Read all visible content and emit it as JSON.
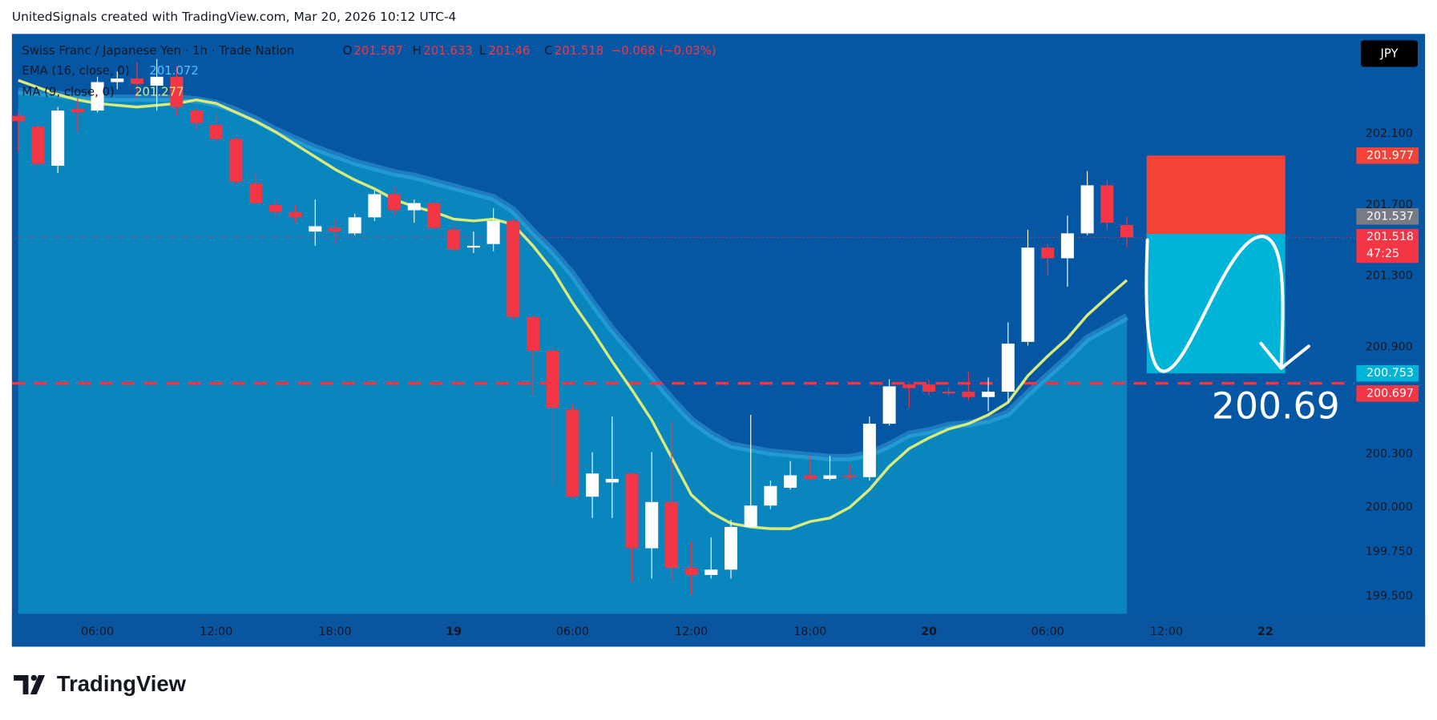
{
  "caption": "UnitedSignals created with TradingView.com, Mar 20, 2026 10:12 UTC-4",
  "currency": "JPY",
  "brand": "TradingView",
  "chart_data": {
    "type": "candlestick",
    "title": "Swiss Franc / Japanese Yen · 1h · Trade Nation",
    "ohlc_labels": [
      "O",
      "H",
      "L",
      "C"
    ],
    "change": "−0.068 (−0.03%)",
    "open": [
      202.2,
      202.14,
      201.92,
      202.24,
      202.23,
      202.39,
      202.41,
      202.37,
      202.42,
      202.23,
      202.15,
      202.07,
      201.82,
      201.7,
      201.66,
      201.55,
      201.57,
      201.54,
      201.63,
      201.76,
      201.67,
      201.71,
      201.56,
      201.46,
      201.48,
      201.61,
      201.07,
      200.88,
      200.55,
      200.06,
      200.14,
      200.19,
      199.77,
      200.03,
      199.66,
      199.62,
      199.65,
      199.89,
      200.01,
      200.11,
      200.18,
      200.16,
      200.18,
      200.17,
      200.47,
      200.69,
      200.69,
      200.65,
      200.65,
      200.62,
      200.65,
      200.93,
      201.46,
      201.4,
      201.54,
      201.81,
      201.587
    ],
    "high": [
      202.22,
      202.16,
      202.25,
      202.3,
      202.42,
      202.45,
      202.5,
      202.52,
      202.48,
      202.25,
      202.22,
      202.08,
      201.88,
      201.73,
      201.7,
      201.73,
      201.62,
      201.65,
      201.78,
      201.8,
      201.73,
      201.73,
      201.58,
      201.55,
      201.68,
      201.62,
      201.08,
      200.9,
      200.58,
      200.31,
      200.51,
      200.19,
      200.31,
      200.48,
      199.81,
      199.83,
      199.93,
      200.52,
      200.15,
      200.26,
      200.29,
      200.29,
      200.24,
      200.51,
      200.72,
      200.7,
      200.72,
      200.67,
      200.76,
      200.73,
      201.04,
      201.56,
      201.48,
      201.64,
      201.89,
      201.84,
      201.633
    ],
    "low": [
      202.0,
      201.9,
      201.88,
      202.11,
      202.22,
      202.35,
      202.3,
      202.23,
      202.2,
      202.12,
      202.05,
      201.82,
      201.7,
      201.63,
      201.6,
      201.47,
      201.48,
      201.53,
      201.61,
      201.64,
      201.6,
      201.55,
      201.44,
      201.43,
      201.44,
      201.05,
      200.63,
      200.12,
      200.05,
      199.94,
      199.94,
      199.58,
      199.6,
      199.58,
      199.51,
      199.6,
      199.6,
      199.89,
      199.99,
      200.1,
      200.15,
      200.15,
      200.15,
      200.15,
      200.46,
      200.56,
      200.63,
      200.63,
      200.6,
      200.54,
      200.59,
      200.91,
      201.3,
      201.24,
      201.53,
      201.56,
      201.46
    ],
    "close": [
      202.17,
      201.93,
      202.23,
      202.22,
      202.39,
      202.41,
      202.38,
      202.42,
      202.25,
      202.16,
      202.07,
      201.83,
      201.71,
      201.66,
      201.63,
      201.58,
      201.55,
      201.63,
      201.76,
      201.67,
      201.71,
      201.57,
      201.45,
      201.47,
      201.61,
      201.07,
      200.88,
      200.56,
      200.06,
      200.19,
      200.16,
      199.77,
      200.03,
      199.66,
      199.62,
      199.65,
      199.89,
      200.01,
      200.12,
      200.18,
      200.16,
      200.18,
      200.17,
      200.47,
      200.68,
      200.67,
      200.65,
      200.64,
      200.62,
      200.65,
      200.92,
      201.46,
      201.4,
      201.54,
      201.81,
      201.6,
      201.518
    ],
    "up_color": "#ffffff",
    "down_color": "#f23645",
    "series": [
      {
        "name": "EMA (16, close, 0)",
        "color": "#4fc3f7",
        "fill": "#0a86bf",
        "values": [
          202.34,
          202.33,
          202.32,
          202.31,
          202.3,
          202.3,
          202.3,
          202.3,
          202.3,
          202.29,
          202.27,
          202.23,
          202.18,
          202.12,
          202.07,
          202.02,
          201.98,
          201.94,
          201.91,
          201.88,
          201.86,
          201.83,
          201.8,
          201.77,
          201.74,
          201.67,
          201.55,
          201.44,
          201.31,
          201.15,
          201.0,
          200.87,
          200.74,
          200.61,
          200.49,
          200.41,
          200.35,
          200.33,
          200.31,
          200.3,
          200.29,
          200.28,
          200.28,
          200.3,
          200.35,
          200.41,
          200.43,
          200.46,
          200.47,
          200.49,
          200.53,
          200.64,
          200.74,
          200.84,
          200.95,
          201.01,
          201.072
        ]
      },
      {
        "name": "MA (9, close, 0)",
        "color": "#d9ec7a",
        "values": [
          202.4,
          202.36,
          202.32,
          202.29,
          202.27,
          202.26,
          202.25,
          202.26,
          202.27,
          202.29,
          202.27,
          202.22,
          202.17,
          202.11,
          202.04,
          201.97,
          201.9,
          201.84,
          201.79,
          201.73,
          201.69,
          201.66,
          201.62,
          201.61,
          201.62,
          201.59,
          201.47,
          201.33,
          201.15,
          200.99,
          200.82,
          200.66,
          200.49,
          200.28,
          200.07,
          199.97,
          199.91,
          199.89,
          199.88,
          199.88,
          199.92,
          199.94,
          200.0,
          200.1,
          200.23,
          200.33,
          200.39,
          200.44,
          200.47,
          200.52,
          200.59,
          200.74,
          200.85,
          200.95,
          201.08,
          201.18,
          201.277
        ]
      }
    ],
    "xlim": [
      -0.32,
      67.5
    ],
    "xticks": [
      {
        "value": 4,
        "label": "06:00"
      },
      {
        "value": 10,
        "label": "12:00"
      },
      {
        "value": 16,
        "label": "18:00"
      },
      {
        "value": 22,
        "label": "19"
      },
      {
        "value": 28,
        "label": "06:00"
      },
      {
        "value": 34,
        "label": "12:00"
      },
      {
        "value": 40,
        "label": "18:00"
      },
      {
        "value": 46,
        "label": "20"
      },
      {
        "value": 52,
        "label": "06:00"
      },
      {
        "value": 58,
        "label": "12:00"
      },
      {
        "value": 63,
        "label": "22"
      }
    ],
    "ylim": [
      199.402,
      202.661
    ],
    "yticks": [
      {
        "value": 202.1,
        "label": "202.100"
      },
      {
        "value": 201.7,
        "label": "201.700"
      },
      {
        "value": 201.3,
        "label": "201.300"
      },
      {
        "value": 200.9,
        "label": "200.900"
      },
      {
        "value": 200.3,
        "label": "200.300"
      },
      {
        "value": 200,
        "label": "200.000"
      },
      {
        "value": 199.75,
        "label": "199.750"
      },
      {
        "value": 199.5,
        "label": "199.500"
      }
    ],
    "countdown": "47:25",
    "position": {
      "start": 57,
      "end": 64,
      "entry": 201.537,
      "stop": 201.977,
      "target": 200.753,
      "stop_color": "#f44336",
      "target_color": "#00b4d8",
      "entry_color": "#787b86"
    },
    "level": 200.697,
    "level_color": "#f23645",
    "annotation": 200.69
  }
}
